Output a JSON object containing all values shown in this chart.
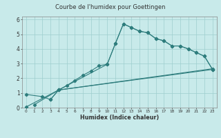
{
  "title": "Courbe de l'humidex pour Goettingen",
  "xlabel": "Humidex (Indice chaleur)",
  "background_color": "#c8eaea",
  "grid_color": "#9ecece",
  "line_color": "#2e7d7d",
  "xlim": [
    -0.5,
    23.5
  ],
  "ylim": [
    0,
    6.2
  ],
  "xticks": [
    0,
    1,
    2,
    3,
    4,
    5,
    6,
    7,
    8,
    9,
    10,
    11,
    12,
    13,
    14,
    15,
    16,
    17,
    18,
    19,
    20,
    21,
    22,
    23
  ],
  "yticks": [
    0,
    1,
    2,
    3,
    4,
    5,
    6
  ],
  "curve1_x": [
    0,
    2,
    3,
    4,
    10,
    11,
    12,
    13,
    14,
    15,
    16,
    17,
    18,
    19,
    20,
    21,
    22,
    23
  ],
  "curve1_y": [
    0.9,
    0.75,
    0.55,
    1.2,
    2.95,
    4.35,
    5.7,
    5.45,
    5.2,
    5.1,
    4.7,
    4.55,
    4.2,
    4.2,
    4.0,
    3.75,
    3.5,
    2.6
  ],
  "curve2_x": [
    3,
    4,
    5,
    6,
    7,
    8,
    9,
    10,
    11,
    12,
    13,
    14,
    15,
    16,
    17,
    18,
    19,
    20,
    21,
    22,
    23
  ],
  "curve2_y": [
    0.55,
    1.2,
    1.5,
    1.85,
    2.2,
    2.5,
    2.85,
    2.95,
    4.35,
    5.7,
    5.45,
    5.2,
    5.1,
    4.7,
    4.55,
    4.2,
    4.2,
    4.0,
    3.75,
    3.5,
    2.6
  ],
  "line1_x": [
    0,
    4,
    23
  ],
  "line1_y": [
    0.05,
    1.2,
    2.6
  ],
  "line2_x": [
    1,
    4,
    23
  ],
  "line2_y": [
    0.2,
    1.2,
    2.65
  ]
}
